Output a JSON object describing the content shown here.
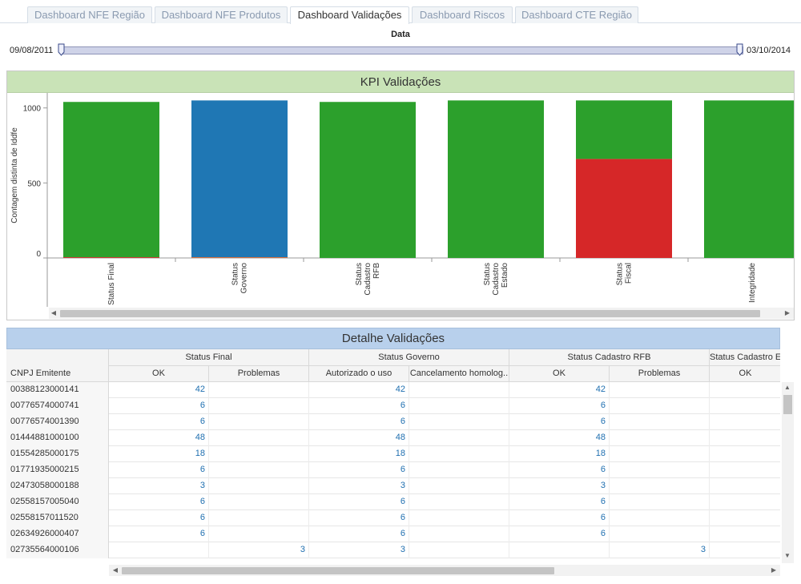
{
  "tabs": [
    {
      "label": "Dashboard NFE Região",
      "active": false
    },
    {
      "label": "Dashboard NFE Produtos",
      "active": false
    },
    {
      "label": "Dashboard Validações",
      "active": true
    },
    {
      "label": "Dashboard Riscos",
      "active": false
    },
    {
      "label": "Dashboard CTE Região",
      "active": false
    }
  ],
  "date_filter": {
    "label": "Data",
    "start": "09/08/2011",
    "end": "03/10/2014"
  },
  "kpi": {
    "title": "KPI Validações",
    "chart_data": {
      "type": "bar",
      "stacked": true,
      "ylabel": "Contagem distinta de Iddfe",
      "yticks": [
        0,
        500,
        1000
      ],
      "ylim": [
        0,
        1100
      ],
      "categories": [
        "Status Final",
        "Status\nGoverno",
        "Status\nCadastro\nRFB",
        "Status\nCadastro\nEstado",
        "Status\nFiscal",
        "Integridade"
      ],
      "segments": [
        [
          {
            "value": 5,
            "color": "#d62728"
          },
          {
            "value": 1035,
            "color": "#2ca02c"
          }
        ],
        [
          {
            "value": 5,
            "color": "#e0662a"
          },
          {
            "value": 1045,
            "color": "#1f77b4"
          }
        ],
        [
          {
            "value": 1040,
            "color": "#2ca02c"
          }
        ],
        [
          {
            "value": 1050,
            "color": "#2ca02c"
          }
        ],
        [
          {
            "value": 660,
            "color": "#d62728"
          },
          {
            "value": 390,
            "color": "#2ca02c"
          }
        ],
        [
          {
            "value": 1050,
            "color": "#2ca02c"
          }
        ]
      ]
    }
  },
  "detail": {
    "title": "Detalhe Validações",
    "row_header": "CNPJ Emitente",
    "groups": [
      "Status Final",
      "Status Governo",
      "Status Cadastro RFB",
      "Status Cadastro E"
    ],
    "columns": [
      "OK",
      "Problemas",
      "Autorizado o uso",
      "Cancelamento homolog..",
      "OK",
      "Problemas",
      "OK"
    ],
    "rows": [
      {
        "cnpj": "00388123000141",
        "values": [
          "42",
          "",
          "42",
          "",
          "42",
          "",
          ""
        ]
      },
      {
        "cnpj": "00776574000741",
        "values": [
          "6",
          "",
          "6",
          "",
          "6",
          "",
          ""
        ]
      },
      {
        "cnpj": "00776574001390",
        "values": [
          "6",
          "",
          "6",
          "",
          "6",
          "",
          ""
        ]
      },
      {
        "cnpj": "01444881000100",
        "values": [
          "48",
          "",
          "48",
          "",
          "48",
          "",
          ""
        ]
      },
      {
        "cnpj": "01554285000175",
        "values": [
          "18",
          "",
          "18",
          "",
          "18",
          "",
          ""
        ]
      },
      {
        "cnpj": "01771935000215",
        "values": [
          "6",
          "",
          "6",
          "",
          "6",
          "",
          ""
        ]
      },
      {
        "cnpj": "02473058000188",
        "values": [
          "3",
          "",
          "3",
          "",
          "3",
          "",
          ""
        ]
      },
      {
        "cnpj": "02558157005040",
        "values": [
          "6",
          "",
          "6",
          "",
          "6",
          "",
          ""
        ]
      },
      {
        "cnpj": "02558157011520",
        "values": [
          "6",
          "",
          "6",
          "",
          "6",
          "",
          ""
        ]
      },
      {
        "cnpj": "02634926000407",
        "values": [
          "6",
          "",
          "6",
          "",
          "6",
          "",
          ""
        ]
      },
      {
        "cnpj": "02735564000106",
        "values": [
          "",
          "3",
          "3",
          "",
          "",
          "3",
          ""
        ]
      }
    ]
  }
}
